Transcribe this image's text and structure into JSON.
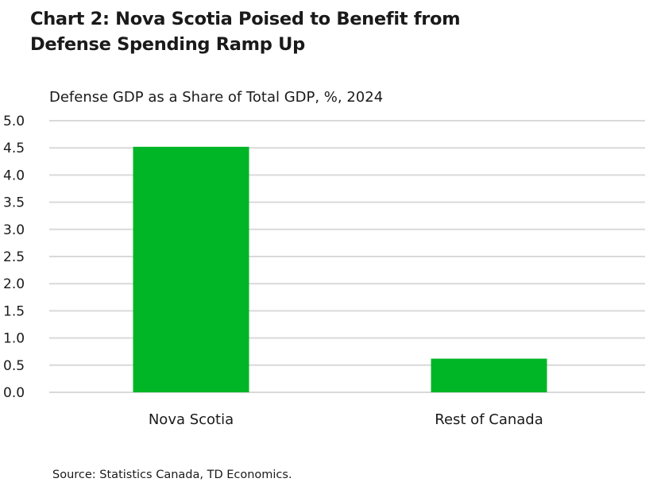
{
  "chart_data": {
    "type": "bar",
    "title_lines": [
      "Chart 2: Nova Scotia Poised to Benefit from",
      "Defense Spending Ramp Up"
    ],
    "subtitle": "Defense GDP as a Share of Total GDP, %, 2024",
    "categories": [
      "Nova Scotia",
      "Rest of Canada"
    ],
    "values": [
      4.52,
      0.62
    ],
    "ylim": [
      0,
      5
    ],
    "yticks": [
      "0.0",
      "0.5",
      "1.0",
      "1.5",
      "2.0",
      "2.5",
      "3.0",
      "3.5",
      "4.0",
      "4.5",
      "5.0"
    ],
    "grid": true,
    "bar_color": "#00b526",
    "grid_color": "#d9d9d9",
    "source": "Source: Statistics Canada, TD Economics."
  }
}
